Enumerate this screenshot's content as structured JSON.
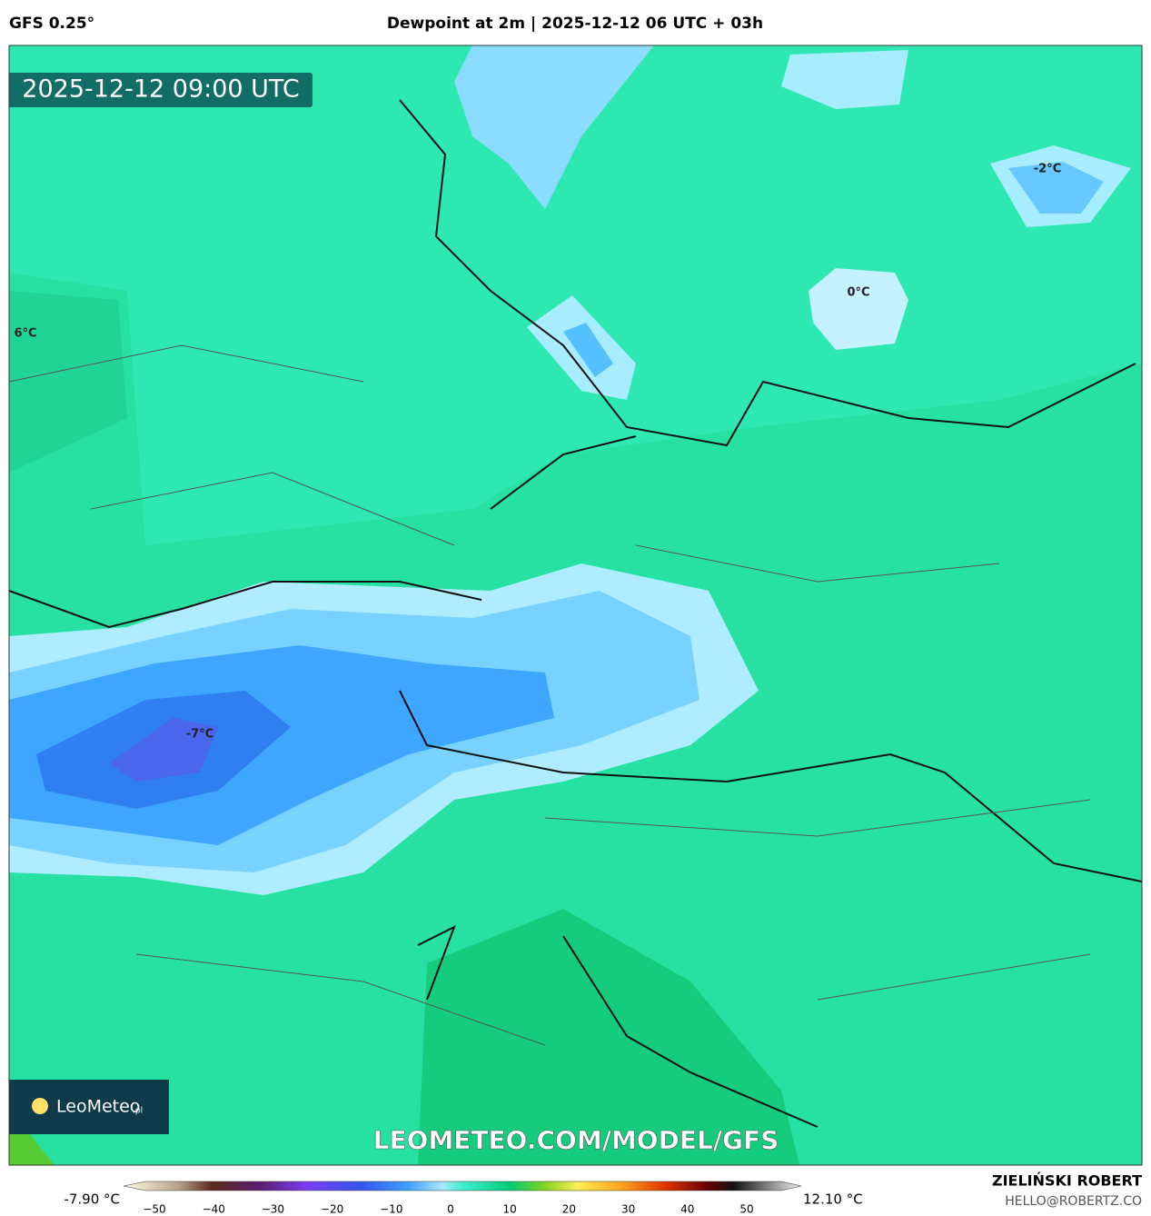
{
  "header": {
    "model": "GFS 0.25°",
    "title": "Dewpoint at 2m | 2025-12-12 06 UTC + 03h"
  },
  "map": {
    "timestamp": "2025-12-12 09:00 UTC",
    "contour_labels": [
      "6°C",
      "0°C",
      "-2°C",
      "-7°C"
    ],
    "watermark": "LEOMETEO.COM/MODEL/GFS",
    "logo": {
      "name": "LeoMeteo",
      "suffix": ".pl"
    }
  },
  "footer": {
    "author": "ZIELIŃSKI ROBERT",
    "email": "HELLO@ROBERTZ.CO",
    "colorbar": {
      "min_label": "-7.90 °C",
      "max_label": "12.10 °C",
      "ticks": [
        "−50",
        "−40",
        "−30",
        "−20",
        "−10",
        "0",
        "10",
        "20",
        "30",
        "40",
        "50"
      ]
    }
  }
}
